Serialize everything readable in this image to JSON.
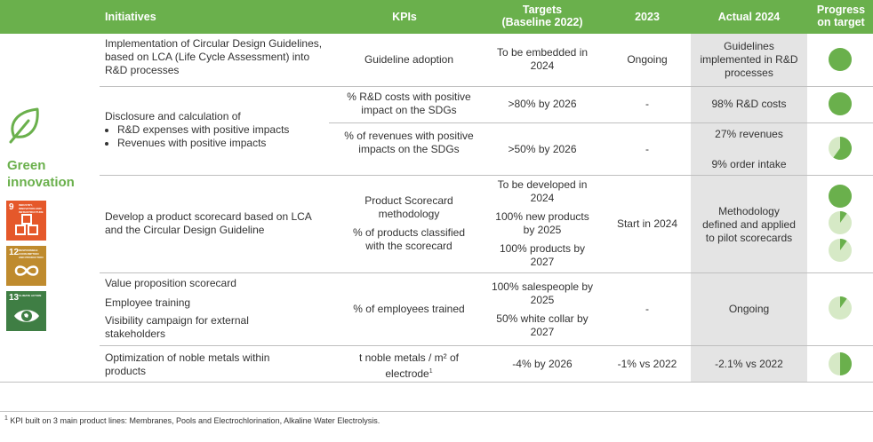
{
  "header": {
    "initiatives": "Initiatives",
    "kpis": "KPIs",
    "targets_line1": "Targets",
    "targets_line2": "(Baseline 2022)",
    "y2023": "2023",
    "actual": "Actual 2024",
    "progress_line1": "Progress",
    "progress_line2": "on target"
  },
  "sidebar": {
    "title_line1": "Green",
    "title_line2": "innovation",
    "sdgs": [
      {
        "number": "9",
        "label": "Industry, innovation and infrastructure",
        "color": "#e5582a",
        "icon": "cubes-icon"
      },
      {
        "number": "12",
        "label": "Responsible consumption and production",
        "color": "#bf8b2e",
        "icon": "infinity-icon"
      },
      {
        "number": "13",
        "label": "Climate action",
        "color": "#3f7e44",
        "icon": "eye-globe-icon"
      }
    ]
  },
  "rows": {
    "r1": {
      "initiative": "Implementation of Circular Design Guidelines, based on LCA (Life Cycle Assessment) into R&D processes",
      "kpi": "Guideline adoption",
      "target": "To be embedded in 2024",
      "y2023": "Ongoing",
      "actual": "Guidelines implemented in R&D processes",
      "progress": 1.0
    },
    "r2": {
      "initiative_intro": "Disclosure and calculation of",
      "bullet1": "R&D expenses with positive impacts",
      "bullet2": "Revenues with positive impacts",
      "kpi_a": "% R&D costs with positive impact on the SDGs",
      "target_a": ">80% by 2026",
      "y2023_a": "-",
      "actual_a": "98% R&D costs",
      "progress_a": 1.0,
      "kpi_b": "% of revenues with positive impacts on the SDGs",
      "target_b": ">50% by 2026",
      "y2023_b": "-",
      "actual_b1": "27% revenues",
      "actual_b2": "9% order intake",
      "progress_b": 0.6
    },
    "r3": {
      "initiative": "Develop a product scorecard based on LCA and the Circular Design Guideline",
      "kpi_a": "Product Scorecard methodology",
      "kpi_b": "% of products classified with the scorecard",
      "target_a": "To be developed in 2024",
      "target_b": "100% new products by 2025",
      "target_c": "100% products by 2027",
      "y2023": "Start in 2024",
      "actual": "Methodology defined and applied to pilot scorecards",
      "progress_a": 1.0,
      "progress_b": 0.1,
      "progress_c": 0.1
    },
    "r4": {
      "initiative_a": "Value proposition scorecard",
      "initiative_b": "Employee training",
      "initiative_c": "Visibility campaign for external stakeholders",
      "kpi": "% of employees trained",
      "target_a": "100% salespeople by 2025",
      "target_b": "50% white collar by 2027",
      "y2023": "-",
      "actual": "Ongoing",
      "progress": 0.1
    },
    "r5": {
      "initiative": "Optimization of noble metals within products",
      "kpi": "t noble metals / m² of electrode",
      "kpi_sup": "1",
      "target": "-4% by 2026",
      "y2023": "-1% vs 2022",
      "actual": "-2.1% vs 2022",
      "progress": 0.5
    }
  },
  "footnote": {
    "marker": "1",
    "text": " KPI built on 3 main product lines: Membranes, Pools and Electrochlorination, Alkaline Water Electrolysis."
  },
  "colors": {
    "accent": "#6ab04c",
    "progress_empty": "#d6e9c6",
    "actual_bg": "#e4e4e4"
  }
}
